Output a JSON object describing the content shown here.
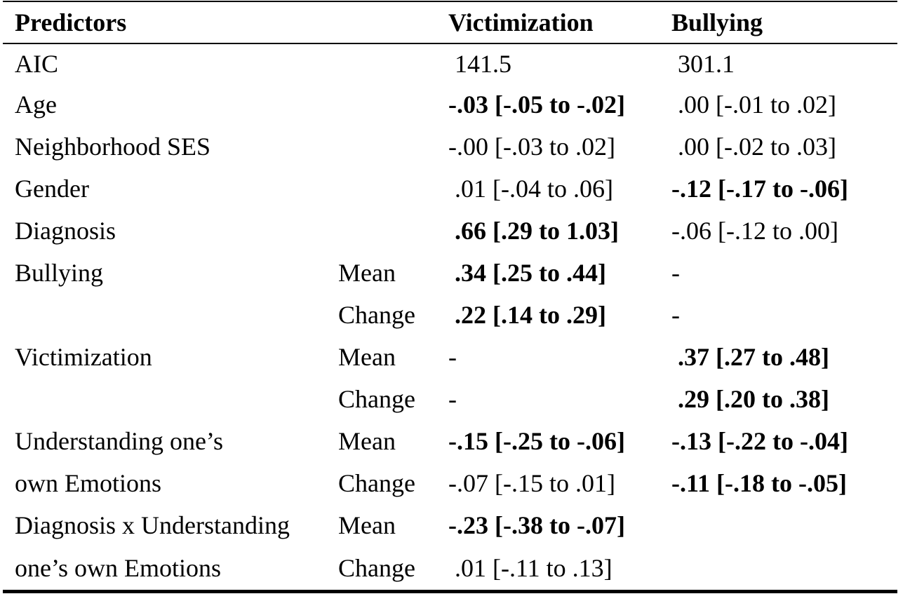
{
  "table": {
    "headers": [
      "Predictors",
      "",
      "Victimization",
      "Bullying"
    ],
    "rows": [
      {
        "predictor": "AIC",
        "sub": "",
        "victimization": " 141.5",
        "victimization_bold": false,
        "bullying": " 301.1",
        "bullying_bold": false
      },
      {
        "predictor": "Age",
        "sub": "",
        "victimization": "-.03 [-.05 to -.02]",
        "victimization_bold": true,
        "bullying": " .00 [-.01 to .02]",
        "bullying_bold": false
      },
      {
        "predictor": "Neighborhood SES",
        "sub": "",
        "victimization": "-.00 [-.03 to .02]",
        "victimization_bold": false,
        "bullying": " .00 [-.02 to .03]",
        "bullying_bold": false
      },
      {
        "predictor": "Gender",
        "sub": "",
        "victimization": " .01 [-.04 to .06]",
        "victimization_bold": false,
        "bullying": "-.12 [-.17 to -.06]",
        "bullying_bold": true
      },
      {
        "predictor": "Diagnosis",
        "sub": "",
        "victimization": " .66 [.29 to 1.03]",
        "victimization_bold": true,
        "bullying": "-.06 [-.12 to .00]",
        "bullying_bold": false
      },
      {
        "predictor": "Bullying",
        "sub": "Mean",
        "victimization": " .34 [.25 to .44]",
        "victimization_bold": true,
        "bullying": "-",
        "bullying_bold": false
      },
      {
        "predictor": "",
        "sub": "Change",
        "victimization": " .22 [.14 to .29]",
        "victimization_bold": true,
        "bullying": "-",
        "bullying_bold": false
      },
      {
        "predictor": "Victimization",
        "sub": "Mean",
        "victimization": "-",
        "victimization_bold": false,
        "bullying": " .37 [.27 to .48]",
        "bullying_bold": true
      },
      {
        "predictor": "",
        "sub": "Change",
        "victimization": "-",
        "victimization_bold": false,
        "bullying": " .29 [.20 to .38]",
        "bullying_bold": true
      },
      {
        "predictor": "Understanding one’s",
        "sub": "Mean",
        "victimization": "-.15 [-.25 to -.06]",
        "victimization_bold": true,
        "bullying": "-.13 [-.22 to -.04]",
        "bullying_bold": true
      },
      {
        "predictor": "own Emotions",
        "sub": "Change",
        "victimization": "-.07 [-.15 to .01]",
        "victimization_bold": false,
        "bullying": "-.11 [-.18 to -.05]",
        "bullying_bold": true
      },
      {
        "predictor": "Diagnosis x Understanding",
        "sub": "Mean",
        "victimization": "-.23 [-.38 to -.07]",
        "victimization_bold": true,
        "bullying": "",
        "bullying_bold": false
      },
      {
        "predictor": "one’s own Emotions",
        "sub": "Change",
        "victimization": " .01 [-.11 to .13]",
        "victimization_bold": false,
        "bullying": "",
        "bullying_bold": false
      }
    ]
  }
}
